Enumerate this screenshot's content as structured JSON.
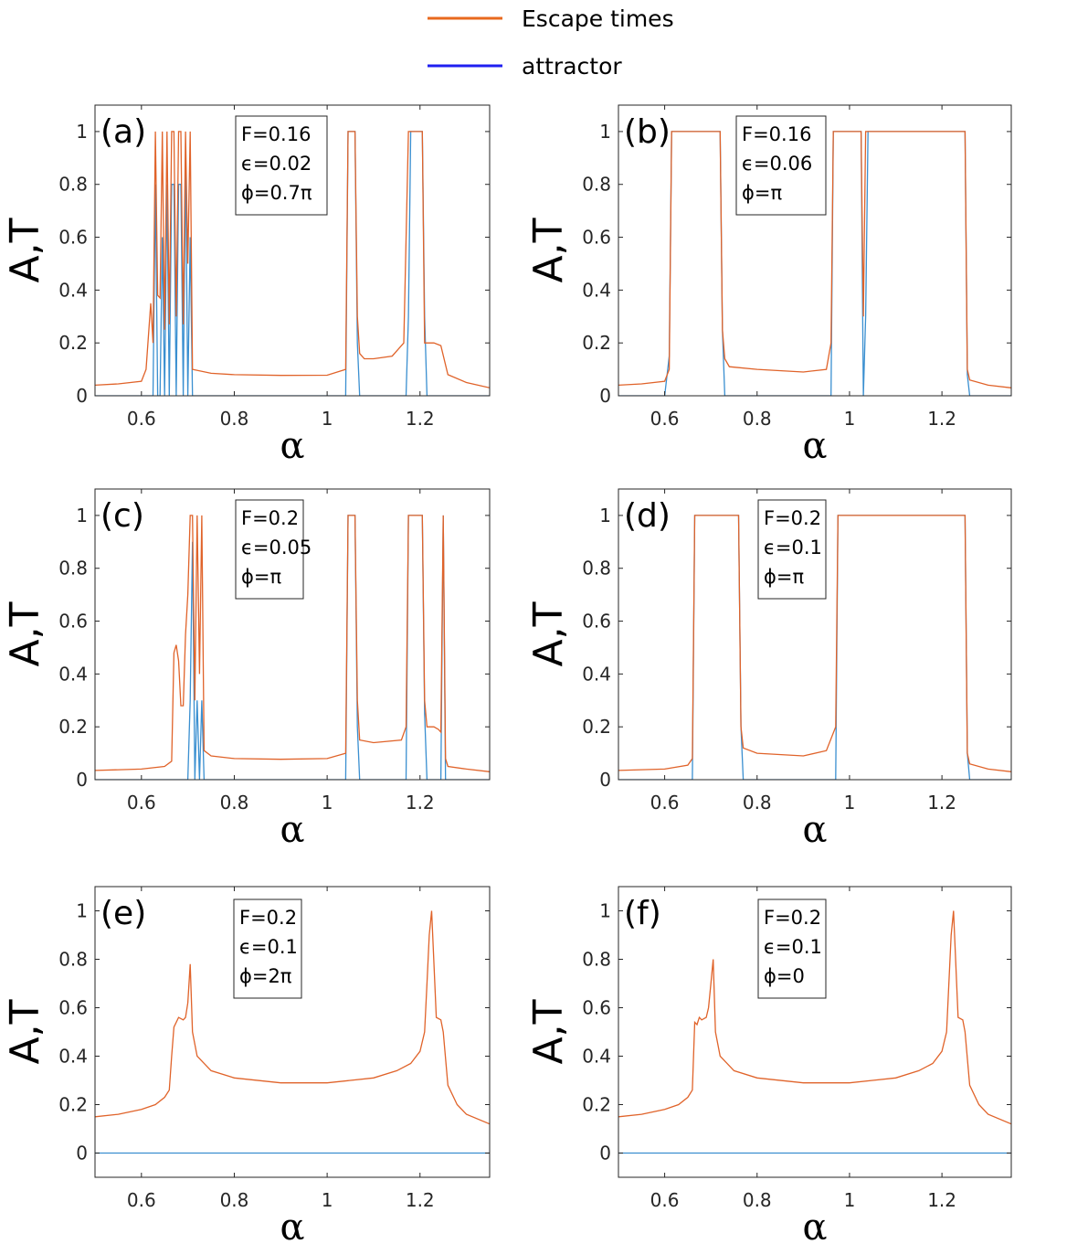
{
  "legend": [
    {
      "label": "Escape times",
      "color": "#e8691e"
    },
    {
      "label": "attractor",
      "color": "#1f1ff0"
    }
  ],
  "colors": {
    "escape": "#e0632a",
    "attractor": "#3a8fd0"
  },
  "chart_data": [
    {
      "type": "line",
      "panel": "(a)",
      "info": [
        "F=0.16",
        "ϵ=0.02",
        "ϕ=0.7π"
      ],
      "xlabel": "α",
      "ylabel": "A,T",
      "xlim": [
        0.5,
        1.35
      ],
      "ylim": [
        0,
        1.1
      ],
      "xticks": [
        "0.6",
        "0.8",
        "1",
        "1.2"
      ],
      "yticks": [
        "0",
        "0.2",
        "0.4",
        "0.6",
        "0.8",
        "1"
      ],
      "series": [
        {
          "name": "Escape times",
          "x": [
            0.5,
            0.55,
            0.6,
            0.61,
            0.62,
            0.625,
            0.63,
            0.635,
            0.64,
            0.645,
            0.65,
            0.655,
            0.66,
            0.665,
            0.67,
            0.675,
            0.68,
            0.685,
            0.69,
            0.695,
            0.7,
            0.705,
            0.71,
            0.75,
            0.8,
            0.9,
            1.0,
            1.04,
            1.045,
            1.06,
            1.065,
            1.07,
            1.08,
            1.1,
            1.14,
            1.165,
            1.175,
            1.18,
            1.205,
            1.21,
            1.215,
            1.23,
            1.245,
            1.26,
            1.3,
            1.35
          ],
          "y": [
            0.04,
            0.045,
            0.055,
            0.1,
            0.35,
            0.2,
            1.0,
            0.38,
            0.37,
            1.0,
            0.25,
            1.0,
            0.27,
            1.0,
            1.0,
            0.3,
            1.0,
            1.0,
            0.27,
            1.0,
            0.5,
            1.0,
            0.1,
            0.085,
            0.08,
            0.077,
            0.078,
            0.1,
            1.0,
            1.0,
            0.3,
            0.16,
            0.14,
            0.14,
            0.15,
            0.2,
            1.0,
            1.0,
            1.0,
            0.2,
            0.2,
            0.2,
            0.19,
            0.08,
            0.05,
            0.03
          ]
        },
        {
          "name": "attractor",
          "x": [
            0.5,
            0.6,
            0.62,
            0.625,
            0.63,
            0.635,
            0.64,
            0.645,
            0.65,
            0.655,
            0.66,
            0.665,
            0.67,
            0.675,
            0.68,
            0.685,
            0.69,
            0.695,
            0.7,
            0.705,
            0.71,
            1.0,
            1.04,
            1.045,
            1.06,
            1.065,
            1.07,
            1.17,
            1.175,
            1.18,
            1.205,
            1.21,
            1.215,
            1.35
          ],
          "y": [
            0,
            0,
            0,
            0,
            0.8,
            0,
            0,
            0.6,
            0,
            0.8,
            0,
            0.8,
            0.8,
            0,
            0.8,
            0.8,
            0,
            0.9,
            0,
            0.6,
            0,
            0,
            0,
            1.0,
            1.0,
            0.2,
            0,
            0,
            0.3,
            1.0,
            1.0,
            0.3,
            0,
            0
          ]
        }
      ]
    },
    {
      "type": "line",
      "panel": "(b)",
      "info": [
        "F=0.16",
        "ϵ=0.06",
        "ϕ=π"
      ],
      "xlabel": "α",
      "ylabel": "A,T",
      "xlim": [
        0.5,
        1.35
      ],
      "ylim": [
        0,
        1.1
      ],
      "xticks": [
        "0.6",
        "0.8",
        "1",
        "1.2"
      ],
      "yticks": [
        "0",
        "0.2",
        "0.4",
        "0.6",
        "0.8",
        "1"
      ],
      "series": [
        {
          "name": "Escape times",
          "x": [
            0.5,
            0.55,
            0.6,
            0.61,
            0.615,
            0.72,
            0.725,
            0.73,
            0.74,
            0.8,
            0.9,
            0.95,
            0.96,
            0.965,
            1.025,
            1.03,
            1.035,
            1.04,
            1.25,
            1.255,
            1.26,
            1.3,
            1.35
          ],
          "y": [
            0.04,
            0.045,
            0.055,
            0.1,
            1.0,
            1.0,
            0.25,
            0.14,
            0.11,
            0.1,
            0.09,
            0.1,
            0.2,
            1.0,
            1.0,
            0.3,
            1.0,
            1.0,
            1.0,
            0.1,
            0.06,
            0.04,
            0.03
          ]
        },
        {
          "name": "attractor",
          "x": [
            0.5,
            0.6,
            0.61,
            0.615,
            0.72,
            0.725,
            0.73,
            0.96,
            0.965,
            1.025,
            1.03,
            1.035,
            1.04,
            1.25,
            1.255,
            1.26,
            1.35
          ],
          "y": [
            0,
            0,
            0.15,
            1.0,
            1.0,
            0.25,
            0,
            0,
            1.0,
            1.0,
            0,
            0.3,
            1.0,
            1.0,
            0.08,
            0,
            0
          ]
        }
      ]
    },
    {
      "type": "line",
      "panel": "(c)",
      "info": [
        "F=0.2",
        "ϵ=0.05",
        "ϕ=π"
      ],
      "xlabel": "α",
      "ylabel": "A,T",
      "xlim": [
        0.5,
        1.35
      ],
      "ylim": [
        0,
        1.1
      ],
      "xticks": [
        "0.6",
        "0.8",
        "1",
        "1.2"
      ],
      "yticks": [
        "0",
        "0.2",
        "0.4",
        "0.6",
        "0.8",
        "1"
      ],
      "series": [
        {
          "name": "Escape times",
          "x": [
            0.5,
            0.6,
            0.65,
            0.665,
            0.67,
            0.675,
            0.68,
            0.685,
            0.69,
            0.695,
            0.7,
            0.705,
            0.71,
            0.715,
            0.72,
            0.725,
            0.73,
            0.735,
            0.75,
            0.8,
            0.9,
            1.0,
            1.04,
            1.045,
            1.06,
            1.065,
            1.07,
            1.1,
            1.16,
            1.17,
            1.175,
            1.205,
            1.21,
            1.215,
            1.23,
            1.24,
            1.245,
            1.25,
            1.255,
            1.26,
            1.3,
            1.35
          ],
          "y": [
            0.035,
            0.04,
            0.05,
            0.07,
            0.48,
            0.51,
            0.45,
            0.28,
            0.28,
            0.55,
            0.7,
            1.0,
            1.0,
            0.3,
            1.0,
            0.4,
            1.0,
            0.11,
            0.09,
            0.08,
            0.077,
            0.08,
            0.1,
            1.0,
            1.0,
            0.3,
            0.15,
            0.14,
            0.15,
            0.2,
            1.0,
            1.0,
            0.3,
            0.2,
            0.2,
            0.19,
            0.18,
            1.0,
            0.08,
            0.05,
            0.04,
            0.03
          ]
        },
        {
          "name": "attractor",
          "x": [
            0.5,
            0.7,
            0.705,
            0.71,
            0.715,
            0.72,
            0.725,
            0.73,
            0.735,
            1.04,
            1.045,
            1.06,
            1.065,
            1.07,
            1.17,
            1.175,
            1.205,
            1.21,
            1.215,
            1.245,
            1.25,
            1.255,
            1.35
          ],
          "y": [
            0,
            0,
            0.3,
            0.9,
            0,
            0.3,
            0,
            0.3,
            0,
            0,
            1.0,
            1.0,
            0.2,
            0,
            0,
            1.0,
            1.0,
            0.25,
            0,
            0,
            1.0,
            0,
            0
          ]
        }
      ]
    },
    {
      "type": "line",
      "panel": "(d)",
      "info": [
        "F=0.2",
        "ϵ=0.1",
        "ϕ=π"
      ],
      "xlabel": "α",
      "ylabel": "A,T",
      "xlim": [
        0.5,
        1.35
      ],
      "ylim": [
        0,
        1.1
      ],
      "xticks": [
        "0.6",
        "0.8",
        "1",
        "1.2"
      ],
      "yticks": [
        "0",
        "0.2",
        "0.4",
        "0.6",
        "0.8",
        "1"
      ],
      "series": [
        {
          "name": "Escape times",
          "x": [
            0.5,
            0.6,
            0.65,
            0.66,
            0.665,
            0.76,
            0.765,
            0.77,
            0.8,
            0.9,
            0.95,
            0.97,
            0.975,
            1.25,
            1.255,
            1.26,
            1.3,
            1.35
          ],
          "y": [
            0.035,
            0.04,
            0.055,
            0.08,
            1.0,
            1.0,
            0.2,
            0.12,
            0.1,
            0.09,
            0.11,
            0.2,
            1.0,
            1.0,
            0.1,
            0.06,
            0.04,
            0.03
          ]
        },
        {
          "name": "attractor",
          "x": [
            0.5,
            0.66,
            0.665,
            0.76,
            0.765,
            0.77,
            0.97,
            0.975,
            1.25,
            1.255,
            1.26,
            1.35
          ],
          "y": [
            0,
            0,
            1.0,
            1.0,
            0.2,
            0,
            0,
            1.0,
            1.0,
            0.1,
            0,
            0
          ]
        }
      ]
    },
    {
      "type": "line",
      "panel": "(e)",
      "info": [
        "F=0.2",
        "ϵ=0.1",
        "ϕ=2π"
      ],
      "xlabel": "α",
      "ylabel": "A,T",
      "xlim": [
        0.5,
        1.35
      ],
      "ylim": [
        -0.1,
        1.1
      ],
      "xticks": [
        "0.6",
        "0.8",
        "1",
        "1.2"
      ],
      "yticks": [
        "0",
        "0.2",
        "0.4",
        "0.6",
        "0.8",
        "1"
      ],
      "series": [
        {
          "name": "Escape times",
          "x": [
            0.5,
            0.55,
            0.6,
            0.63,
            0.65,
            0.66,
            0.665,
            0.67,
            0.68,
            0.69,
            0.695,
            0.7,
            0.705,
            0.71,
            0.72,
            0.75,
            0.8,
            0.9,
            0.95,
            1.0,
            1.05,
            1.1,
            1.15,
            1.18,
            1.2,
            1.21,
            1.215,
            1.22,
            1.225,
            1.235,
            1.245,
            1.25,
            1.26,
            1.28,
            1.3,
            1.35
          ],
          "y": [
            0.15,
            0.16,
            0.18,
            0.2,
            0.23,
            0.26,
            0.4,
            0.52,
            0.56,
            0.55,
            0.56,
            0.62,
            0.78,
            0.5,
            0.4,
            0.34,
            0.31,
            0.29,
            0.29,
            0.29,
            0.3,
            0.31,
            0.34,
            0.37,
            0.42,
            0.5,
            0.7,
            0.9,
            1.0,
            0.56,
            0.55,
            0.5,
            0.28,
            0.2,
            0.16,
            0.12
          ]
        },
        {
          "name": "attractor",
          "x": [
            0.5,
            1.35
          ],
          "y": [
            0,
            0
          ]
        }
      ]
    },
    {
      "type": "line",
      "panel": "(f)",
      "info": [
        "F=0.2",
        "ϵ=0.1",
        "ϕ=0"
      ],
      "xlabel": "α",
      "ylabel": "A,T",
      "xlim": [
        0.5,
        1.35
      ],
      "ylim": [
        -0.1,
        1.1
      ],
      "xticks": [
        "0.6",
        "0.8",
        "1",
        "1.2"
      ],
      "yticks": [
        "0",
        "0.2",
        "0.4",
        "0.6",
        "0.8",
        "1"
      ],
      "series": [
        {
          "name": "Escape times",
          "x": [
            0.5,
            0.55,
            0.6,
            0.63,
            0.65,
            0.66,
            0.665,
            0.67,
            0.675,
            0.68,
            0.69,
            0.695,
            0.7,
            0.705,
            0.71,
            0.72,
            0.75,
            0.8,
            0.9,
            0.95,
            1.0,
            1.05,
            1.1,
            1.15,
            1.18,
            1.2,
            1.21,
            1.215,
            1.22,
            1.225,
            1.235,
            1.245,
            1.25,
            1.26,
            1.28,
            1.3,
            1.35
          ],
          "y": [
            0.15,
            0.16,
            0.18,
            0.2,
            0.23,
            0.26,
            0.54,
            0.53,
            0.56,
            0.55,
            0.56,
            0.6,
            0.7,
            0.8,
            0.5,
            0.4,
            0.34,
            0.31,
            0.29,
            0.29,
            0.29,
            0.3,
            0.31,
            0.34,
            0.37,
            0.42,
            0.5,
            0.7,
            0.9,
            1.0,
            0.56,
            0.55,
            0.5,
            0.28,
            0.2,
            0.16,
            0.12
          ]
        },
        {
          "name": "attractor",
          "x": [
            0.5,
            1.35
          ],
          "y": [
            0,
            0
          ]
        }
      ]
    }
  ]
}
